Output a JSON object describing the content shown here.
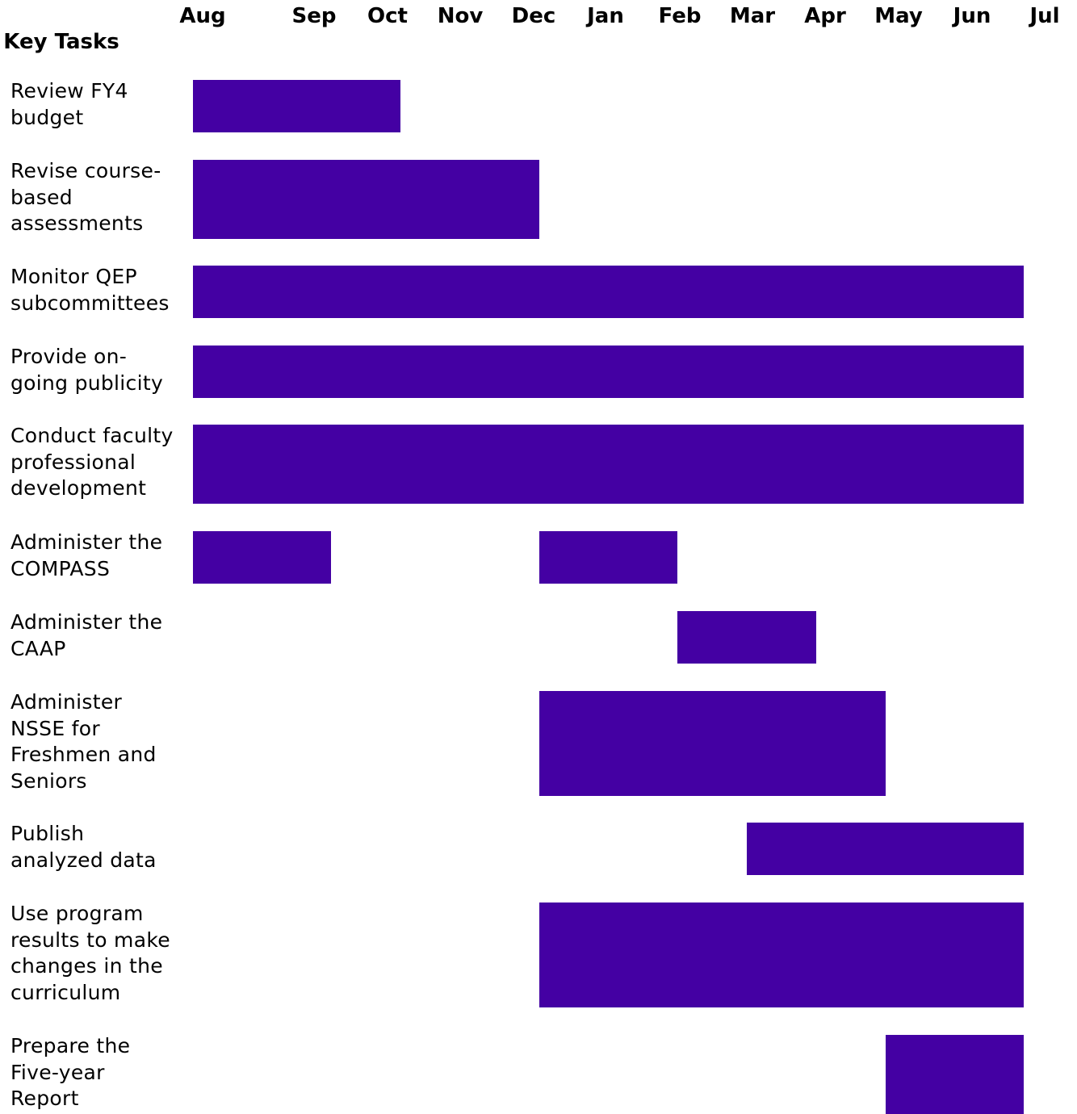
{
  "chart_data": {
    "type": "gantt",
    "title": "",
    "header": "Key Tasks",
    "months": [
      "Aug",
      "Sep",
      "Oct",
      "Nov",
      "Dec",
      "Jan",
      "Feb",
      "Mar",
      "Apr",
      "May",
      "Jun",
      "Jul"
    ],
    "bar_color": "#4400a3",
    "tasks": [
      {
        "label": "Review FY4\nbudget",
        "segments": [
          [
            "Aug",
            "Oct"
          ]
        ]
      },
      {
        "label": "Revise course-\nbased\nassessments",
        "segments": [
          [
            "Aug",
            "Dec"
          ]
        ]
      },
      {
        "label": "Monitor QEP\nsubcommittees",
        "segments": [
          [
            "Aug",
            "Jul"
          ]
        ]
      },
      {
        "label": "Provide on-\ngoing publicity",
        "segments": [
          [
            "Aug",
            "Jul"
          ]
        ]
      },
      {
        "label": "Conduct faculty\nprofessional\ndevelopment",
        "segments": [
          [
            "Aug",
            "Jul"
          ]
        ]
      },
      {
        "label": "Administer the\nCOMPASS",
        "segments": [
          [
            "Aug",
            "Sep"
          ],
          [
            "Dec",
            "Feb"
          ]
        ]
      },
      {
        "label": "Administer the\nCAAP",
        "segments": [
          [
            "Feb",
            "Apr"
          ]
        ]
      },
      {
        "label": "Administer\nNSSE for\nFreshmen and\nSeniors",
        "segments": [
          [
            "Dec",
            "May"
          ]
        ]
      },
      {
        "label": "Publish\nanalyzed data",
        "segments": [
          [
            "Mar",
            "Jul"
          ]
        ]
      },
      {
        "label": "Use program\nresults to make\nchanges in the\ncurriculum",
        "segments": [
          [
            "Dec",
            "Jul"
          ]
        ]
      },
      {
        "label": "Prepare the\nFive-year\nReport",
        "segments": [
          [
            "May",
            "Jul"
          ]
        ]
      }
    ]
  }
}
